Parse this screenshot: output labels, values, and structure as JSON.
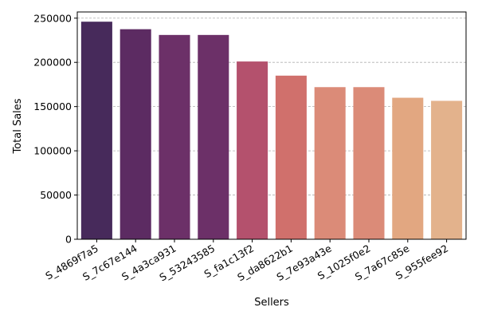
{
  "chart_data": {
    "type": "bar",
    "title": "",
    "xlabel": "Sellers",
    "ylabel": "Total Sales",
    "categories": [
      "S_4869f7a5",
      "S_7c67e144",
      "S_4a3ca931",
      "S_53243585",
      "S_fa1c13f2",
      "S_da8622b1",
      "S_7e93a43e",
      "S_1025f0e2",
      "S_7a67c85e",
      "S_955fee92"
    ],
    "values": [
      246000,
      237500,
      231000,
      231000,
      201000,
      185000,
      172000,
      172000,
      160000,
      156500
    ],
    "colors": [
      "#472a5b",
      "#5c2b62",
      "#6c3068",
      "#6c3068",
      "#b4516d",
      "#d0706c",
      "#db8b78",
      "#db8b78",
      "#e2a781",
      "#e3b28c"
    ],
    "ylim": [
      0,
      257000
    ],
    "yticks": [
      0,
      50000,
      100000,
      150000,
      200000,
      250000
    ],
    "grid": "y-dashed",
    "legend": "none"
  }
}
